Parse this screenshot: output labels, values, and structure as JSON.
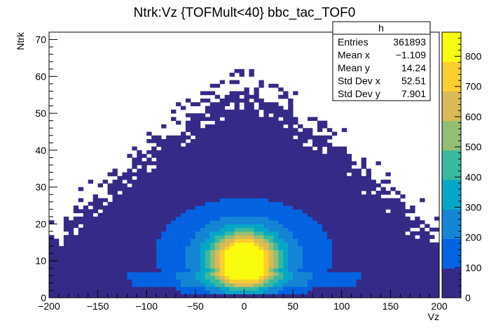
{
  "chart_data": {
    "type": "heatmap",
    "title": "Ntrk:Vz {TOFMult<40} bbc_tac_TOF0",
    "xlabel": "Vz",
    "ylabel": "Ntrk",
    "xlim": [
      -200,
      200
    ],
    "ylim": [
      0,
      72
    ],
    "x_ticks": [
      -200,
      -150,
      -100,
      -50,
      0,
      50,
      100,
      150,
      200
    ],
    "y_ticks": [
      0,
      10,
      20,
      30,
      40,
      50,
      60,
      70
    ],
    "x_bin_width": 5,
    "y_bin_width": 1,
    "z_range": [
      0,
      880
    ],
    "z_ticks": [
      0,
      100,
      200,
      300,
      400,
      500,
      600,
      700,
      800
    ],
    "palette": [
      "#352a87",
      "#0363e1",
      "#1485d4",
      "#06a7c6",
      "#38b99e",
      "#92bf73",
      "#d9ba56",
      "#fcce2e",
      "#f9fb0e"
    ],
    "density_model": {
      "description": "approximate bin contents read from colour",
      "peak_count": 880,
      "peak_vz": 0,
      "peak_ntrk": 10,
      "core_sigma_vz": 22,
      "core_sigma_ntrk": 5,
      "envelope_max_ntrk_at_vz0": 55,
      "envelope_max_ntrk_at_vz_pm200": 13,
      "low_band_ntrk": [
        3,
        7
      ]
    },
    "grid": false,
    "legend": "top-right stats box"
  },
  "stats_box": {
    "title": "h",
    "rows": [
      {
        "label": "Entries",
        "value": "361893"
      },
      {
        "label": "Mean x",
        "value": "−1.109"
      },
      {
        "label": "Mean y",
        "value": "14.24"
      },
      {
        "label": "Std Dev x",
        "value": "52.51"
      },
      {
        "label": "Std Dev y",
        "value": "7.901"
      }
    ]
  }
}
